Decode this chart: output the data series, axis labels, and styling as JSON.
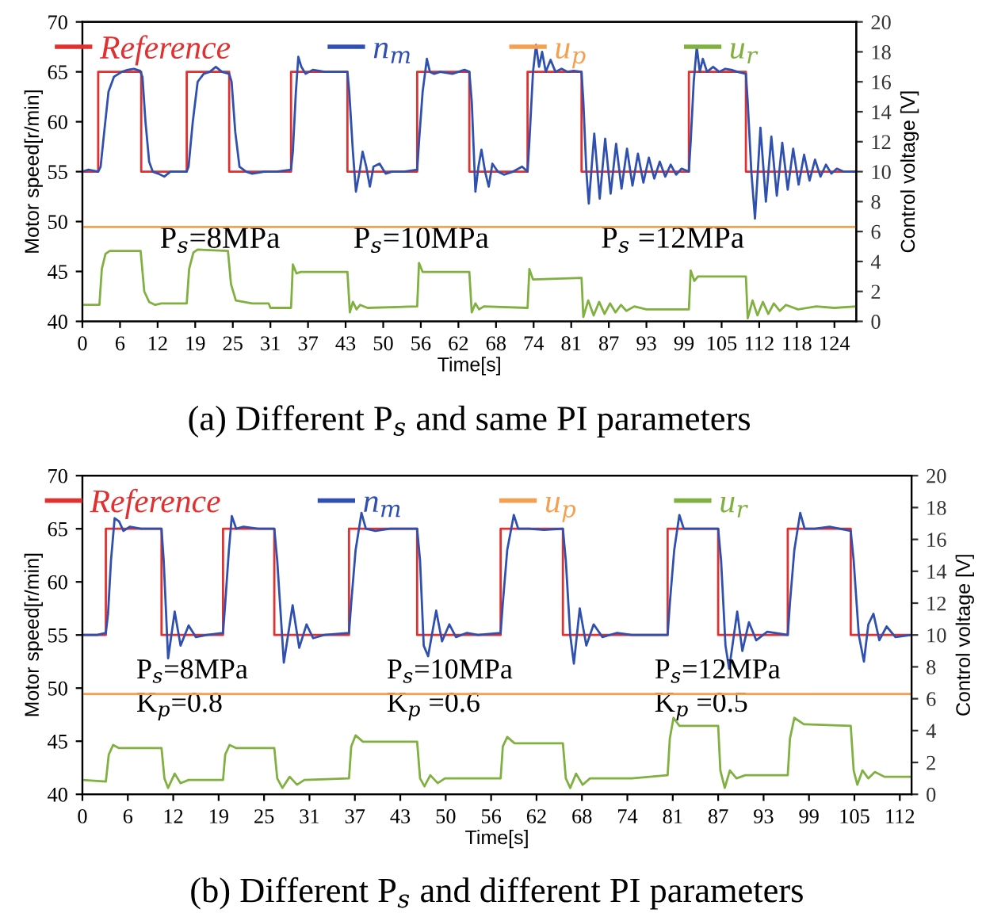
{
  "chart_data": [
    {
      "type": "line",
      "title": "(a) Different P$_{s}$ and same PI parameters",
      "xlabel": "Time[s]",
      "ylabel": "Motor speed[r/min]",
      "y2label": "Control voltage [V]",
      "legend": "top",
      "grid": false,
      "marker": "none",
      "xlim": [
        0,
        127.6
      ],
      "ylim": [
        40,
        70
      ],
      "yticks": [
        40,
        45,
        50,
        55,
        60,
        65,
        70
      ],
      "y2lim": [
        0,
        20
      ],
      "y2ticks": [
        0,
        2,
        4,
        6,
        8,
        10,
        12,
        14,
        16,
        18,
        20
      ],
      "xticks": [
        0,
        {
          "value": 6.2,
          "label": "6"
        },
        {
          "value": 12.4,
          "label": "12"
        },
        {
          "value": 18.6,
          "label": "19"
        },
        {
          "value": 24.8,
          "label": "25"
        },
        31,
        {
          "value": 37.2,
          "label": "37"
        },
        {
          "value": 43.4,
          "label": "43"
        },
        {
          "value": 49.6,
          "label": "50"
        },
        {
          "value": 55.8,
          "label": "56"
        },
        62,
        {
          "value": 68.2,
          "label": "68"
        },
        {
          "value": 74.4,
          "label": "74"
        },
        {
          "value": 80.6,
          "label": "81"
        },
        {
          "value": 86.8,
          "label": "87"
        },
        93,
        {
          "value": 99.2,
          "label": "99"
        },
        {
          "value": 105.4,
          "label": "105"
        },
        {
          "value": 111.6,
          "label": "112"
        },
        {
          "value": 117.8,
          "label": "118"
        },
        124
      ],
      "annotations": [
        "P$_{s}$=8MPa",
        "P$_{s}$=10MPa",
        "P$_{s}$ =12MPa"
      ],
      "series": [
        {
          "name": "Reference",
          "type": "step",
          "color": "#e03030",
          "x": [
            0,
            2.6,
            9.7,
            17.2,
            24.2,
            34.4,
            43.7,
            55.2,
            63.8,
            73.4,
            82.3,
            100,
            109.4,
            127.6
          ],
          "values": [
            55,
            65,
            55,
            65,
            55,
            65,
            55,
            65,
            55,
            65,
            55,
            65,
            55,
            55
          ]
        },
        {
          "name": "n$_{m}$",
          "color": "#3050b0",
          "x": [
            0,
            1,
            2.6,
            3.0,
            3.6,
            4.3,
            5.2,
            6.5,
            7.5,
            8.5,
            9.5,
            9.9,
            10.4,
            11.0,
            11.6,
            12.5,
            13.5,
            14.5,
            16,
            17.2,
            17.5,
            18.2,
            19.0,
            20,
            21,
            22,
            23,
            24.2,
            24.6,
            25.2,
            25.9,
            27,
            28,
            30,
            32,
            34.4,
            34.7,
            35.2,
            35.6,
            36.1,
            36.8,
            38,
            40,
            42,
            43.7,
            44,
            44.6,
            45.1,
            45.7,
            46.2,
            46.8,
            47.4,
            48,
            49,
            50,
            51,
            53,
            55.2,
            55.5,
            56.1,
            56.8,
            57.3,
            58,
            59,
            61,
            63,
            63.8,
            64.2,
            64.8,
            65.3,
            65.8,
            66.4,
            67,
            67.6,
            68.5,
            69.5,
            71,
            72.5,
            73.4,
            73.7,
            74.3,
            74.8,
            75.3,
            75.8,
            76.4,
            77.2,
            78,
            79,
            80,
            81,
            82.3,
            82.6,
            83.1,
            83.5,
            84.4,
            85.3,
            86.2,
            87.1,
            88.0,
            88.9,
            89.8,
            90.7,
            91.6,
            92.5,
            93.4,
            94.3,
            95.2,
            96.1,
            97,
            97.9,
            98.8,
            100,
            100.3,
            100.8,
            101.3,
            101.8,
            102.3,
            103,
            104,
            105,
            106,
            107,
            108,
            109.4,
            109.7,
            110.3,
            110.9,
            111.8,
            112.7,
            113.6,
            114.5,
            115.4,
            116.3,
            117.2,
            118.1,
            119,
            119.9,
            120.8,
            121.7,
            122.6,
            123.5,
            124.4,
            125.5,
            127.6
          ],
          "values": [
            55,
            55.2,
            55.0,
            55.5,
            59,
            63,
            64.5,
            65,
            65.2,
            65.3,
            65.1,
            64.5,
            60,
            56,
            55,
            54.8,
            54.5,
            55,
            55,
            55,
            55.5,
            60,
            64,
            64.8,
            65,
            65.5,
            65,
            64.8,
            64,
            59,
            55.5,
            55,
            54.8,
            55,
            55,
            55.2,
            57,
            63,
            66.5,
            65.5,
            64.8,
            65.2,
            65,
            65,
            65,
            63,
            57,
            53,
            55,
            57,
            55.5,
            53.5,
            55.5,
            55.8,
            54.8,
            55,
            55,
            55.2,
            58,
            63,
            66.3,
            65,
            64.8,
            65,
            64.8,
            65.2,
            65,
            62,
            53,
            55.5,
            57.2,
            55,
            53.5,
            55.8,
            55,
            54.7,
            55,
            55.5,
            55,
            58,
            65,
            67.7,
            65.5,
            67,
            65,
            66.2,
            65,
            65.3,
            65,
            65.1,
            65,
            62,
            55,
            51.8,
            58.8,
            52.3,
            58.3,
            52.8,
            57.8,
            53.3,
            57.3,
            53.6,
            56.8,
            53.9,
            56.4,
            54.3,
            56,
            54.5,
            55.7,
            54.7,
            55.3,
            55,
            58,
            64,
            67.5,
            65,
            66.3,
            65,
            65.5,
            65,
            65.3,
            65.2,
            65,
            64.8,
            62,
            55,
            50.3,
            59.4,
            52,
            58.5,
            52.6,
            57.9,
            53.2,
            57.3,
            53.7,
            56.7,
            54.1,
            56.2,
            54.5,
            55.7,
            54.8,
            55.3,
            55,
            55
          ]
        },
        {
          "name": "u$_{p}$",
          "axis": "y2",
          "color": "#f5a050",
          "x": [
            0,
            127.6
          ],
          "values": [
            6.3,
            6.3
          ]
        },
        {
          "name": "u$_{r}$",
          "axis": "y2",
          "color": "#80b040",
          "x": [
            0,
            2.8,
            3.2,
            3.8,
            4.5,
            9.6,
            10.2,
            11,
            12,
            13,
            17.2,
            17.6,
            18.3,
            19,
            24,
            24.5,
            25.3,
            28,
            30.7,
            31,
            34.4,
            34.7,
            35.3,
            36,
            43.7,
            44.1,
            44.6,
            45.2,
            45.8,
            47,
            55.2,
            55.5,
            56.1,
            63.8,
            64.2,
            64.8,
            65.4,
            66.2,
            73.4,
            73.7,
            74.3,
            82.3,
            82.6,
            83.4,
            84.3,
            85.2,
            86.1,
            87,
            87.9,
            88.8,
            89.7,
            91,
            93,
            100,
            100.3,
            100.9,
            101.5,
            109.4,
            109.7,
            110.5,
            111.3,
            112.2,
            113.1,
            114,
            115,
            116,
            118,
            121,
            124,
            127.6
          ],
          "values": [
            1.1,
            1.1,
            3.5,
            4.5,
            4.7,
            4.7,
            2,
            1.3,
            1.1,
            1.2,
            1.2,
            3.5,
            4.6,
            4.8,
            4.7,
            2.5,
            1.4,
            1.2,
            1.2,
            0.9,
            0.9,
            3.8,
            3.2,
            3.3,
            3.3,
            0.6,
            1.3,
            0.8,
            1.1,
            0.9,
            1,
            3.9,
            3.3,
            3.3,
            0.6,
            1.2,
            0.8,
            1,
            0.9,
            3.5,
            2.8,
            2.9,
            0.3,
            1.4,
            0.4,
            1.3,
            0.5,
            1.2,
            0.6,
            1.1,
            0.7,
            1,
            0.8,
            0.8,
            3.4,
            2.7,
            3,
            3,
            0.2,
            1.4,
            0.4,
            1.3,
            0.5,
            1.2,
            0.7,
            1.1,
            0.8,
            1,
            0.9,
            1
          ]
        }
      ]
    },
    {
      "type": "line",
      "title": "(b) Different P$_{s}$ and different PI parameters",
      "xlabel": "Time[s]",
      "ylabel": "Motor speed[r/min]",
      "y2label": "Control voltage [V]",
      "legend": "top",
      "grid": false,
      "marker": "none",
      "xlim": [
        0,
        113.2
      ],
      "ylim": [
        40,
        70
      ],
      "yticks": [
        40,
        45,
        50,
        55,
        60,
        65,
        70
      ],
      "y2lim": [
        0,
        20
      ],
      "y2ticks": [
        0,
        2,
        4,
        6,
        8,
        10,
        12,
        14,
        16,
        18,
        20
      ],
      "xticks": [
        0,
        {
          "value": 6.2,
          "label": "6"
        },
        {
          "value": 12.4,
          "label": "12"
        },
        {
          "value": 18.6,
          "label": "19"
        },
        {
          "value": 24.8,
          "label": "25"
        },
        31,
        {
          "value": 37.2,
          "label": "37"
        },
        {
          "value": 43.4,
          "label": "43"
        },
        {
          "value": 49.6,
          "label": "50"
        },
        {
          "value": 55.8,
          "label": "56"
        },
        62,
        {
          "value": 68.2,
          "label": "68"
        },
        {
          "value": 74.4,
          "label": "74"
        },
        {
          "value": 80.6,
          "label": "81"
        },
        {
          "value": 86.8,
          "label": "87"
        },
        93,
        {
          "value": 99.2,
          "label": "99"
        },
        {
          "value": 105.4,
          "label": "105"
        },
        {
          "value": 111.6,
          "label": "112"
        }
      ],
      "annotations": [
        "P$_{s}$=8MPa",
        "P$_{s}$=10MPa",
        "P$_{s}$=12MPa",
        "K$_{p}$=0.8",
        "K$_{p}$ =0.6",
        "K$_{p}$ =0.5"
      ],
      "series": [
        {
          "name": "Reference",
          "type": "step",
          "color": "#e03030",
          "x": [
            0,
            3.2,
            10.8,
            19.2,
            26.2,
            36.4,
            45.7,
            57.1,
            65.6,
            79.9,
            86.8,
            96.3,
            104.9,
            113.2
          ],
          "values": [
            55,
            65,
            55,
            65,
            55,
            65,
            55,
            65,
            55,
            65,
            55,
            65,
            55,
            55
          ]
        },
        {
          "name": "n$_{m}$",
          "color": "#3050b0",
          "x": [
            0,
            2,
            3.2,
            3.5,
            3.9,
            4.4,
            5,
            5.6,
            6.5,
            8,
            10.8,
            11.1,
            11.7,
            12.6,
            13.4,
            14.5,
            15.5,
            17,
            19.2,
            19.5,
            20,
            20.4,
            21,
            22,
            24,
            26.2,
            26.6,
            27.5,
            28.7,
            29.6,
            30.6,
            31.5,
            33,
            36.4,
            36.7,
            37.3,
            38.1,
            38.7,
            40,
            42,
            44,
            45.7,
            46.1,
            46.6,
            47.2,
            48.3,
            49.1,
            50.1,
            51,
            52.5,
            54,
            57.1,
            57.4,
            58,
            58.9,
            59.5,
            61,
            63,
            65.6,
            66,
            66.6,
            67.1,
            67.9,
            68.8,
            69.8,
            71,
            73,
            75,
            79.9,
            80.2,
            80.8,
            81.5,
            82.1,
            83.5,
            86.8,
            87.2,
            87.8,
            88.3,
            89.4,
            90.1,
            91,
            92,
            93.5,
            96.3,
            96.6,
            97.2,
            98,
            98.6,
            100,
            102,
            104.9,
            105.3,
            106,
            106.7,
            107.3,
            108,
            108.8,
            109.8,
            111,
            113.2
          ],
          "values": [
            55,
            55,
            55.2,
            57,
            62,
            66,
            65.7,
            64.8,
            65.2,
            65,
            65,
            62,
            52.8,
            57.2,
            54,
            55.9,
            54.8,
            55,
            55.2,
            58,
            63,
            66.2,
            65,
            65.2,
            65,
            65,
            62,
            52.4,
            57.8,
            53.8,
            56,
            54.7,
            55,
            55.2,
            58,
            63,
            66.5,
            65,
            64.8,
            65,
            65,
            65,
            62,
            54,
            53,
            57.3,
            54.4,
            56,
            54.8,
            55.2,
            55,
            55.2,
            58,
            63,
            66.3,
            65,
            65,
            64.9,
            65,
            62,
            55,
            52.3,
            57.5,
            54,
            56,
            54.8,
            55.2,
            55,
            55,
            58,
            63,
            66.3,
            65,
            65,
            65,
            62,
            54,
            51.8,
            57.2,
            53.5,
            56.2,
            54.5,
            55.3,
            55,
            58,
            63,
            66.5,
            65,
            65,
            65.2,
            64.8,
            62,
            55,
            52.5,
            56,
            57,
            54.5,
            55.8,
            54.8,
            55
          ]
        },
        {
          "name": "u$_{p}$",
          "axis": "y2",
          "color": "#f5a050",
          "x": [
            0,
            113.2
          ],
          "values": [
            6.3,
            6.3
          ]
        },
        {
          "name": "u$_{r}$",
          "axis": "y2",
          "color": "#80b040",
          "x": [
            0,
            3.2,
            3.6,
            4.2,
            5,
            10.8,
            11.2,
            11.7,
            12.6,
            13.4,
            14.5,
            19.2,
            19.5,
            20.1,
            21,
            26.2,
            26.6,
            27.3,
            28.3,
            29.3,
            30.3,
            36.4,
            36.7,
            37.3,
            38.3,
            45.7,
            46.1,
            46.7,
            47.5,
            48.5,
            49.5,
            57.1,
            57.4,
            58,
            59,
            65.6,
            66,
            66.6,
            67.4,
            68.3,
            69.3,
            75,
            79.9,
            80.2,
            80.7,
            81.5,
            86.8,
            87.1,
            87.7,
            88.4,
            89.3,
            90.5,
            96.3,
            96.6,
            97.2,
            98.5,
            104.9,
            105.3,
            105.8,
            106.5,
            107.3,
            108.2,
            109.5,
            113.2
          ],
          "values": [
            0.9,
            0.8,
            2.5,
            3.1,
            2.9,
            2.9,
            1,
            0.4,
            1.3,
            0.7,
            0.9,
            0.9,
            2.5,
            3.1,
            2.9,
            2.9,
            1,
            0.4,
            1.1,
            0.6,
            0.9,
            1,
            3,
            3.7,
            3.3,
            3.3,
            1,
            0.5,
            1.2,
            0.7,
            1,
            1,
            3,
            3.6,
            3.2,
            3.2,
            1,
            0.4,
            1.3,
            0.6,
            1,
            1,
            1.2,
            3.5,
            4.8,
            4.3,
            4.3,
            1.5,
            0.4,
            1.5,
            1,
            1.2,
            1.2,
            3.5,
            4.8,
            4.4,
            4.3,
            1.5,
            0.6,
            1.5,
            1,
            1.4,
            1.1,
            1.1
          ]
        }
      ]
    }
  ]
}
